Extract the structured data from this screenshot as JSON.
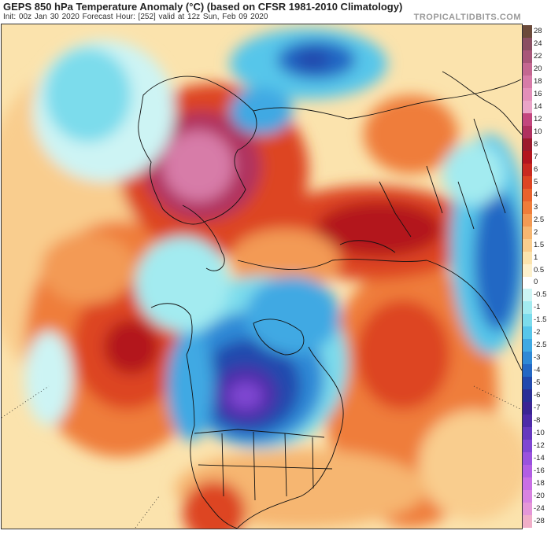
{
  "header": {
    "title": "GEPS 850 hPa Temperature Anomaly (°C) (based on CFSR 1981-2010 Climatology)",
    "subtitle": "Init: 00z Jan 30 2020   Forecast Hour: [252]   valid at 12z Sun, Feb 09 2020",
    "brand": "TROPICALTIDBITS.COM"
  },
  "colorbar": {
    "labels": [
      "28",
      "24",
      "22",
      "20",
      "18",
      "16",
      "14",
      "12",
      "10",
      "8",
      "7",
      "6",
      "5",
      "4",
      "3",
      "2.5",
      "2",
      "1.5",
      "1",
      "0.5",
      "0",
      "-0.5",
      "-1",
      "-1.5",
      "-2",
      "-2.5",
      "-3",
      "-4",
      "-5",
      "-6",
      "-7",
      "-8",
      "-10",
      "-12",
      "-14",
      "-16",
      "-18",
      "-20",
      "-24",
      "-28"
    ],
    "colors": [
      "#6b4a3a",
      "#8a4f62",
      "#a85679",
      "#c46791",
      "#d77ba8",
      "#e38fb9",
      "#eaa4c8",
      "#c3467e",
      "#b0305f",
      "#9c1a2c",
      "#b3161e",
      "#c92a1f",
      "#dd4522",
      "#e8622d",
      "#ef7d3a",
      "#f39a54",
      "#f6b671",
      "#f9cd8e",
      "#fbe3ad",
      "#fdf1cd",
      "#ffffff",
      "#cdf4f4",
      "#a3ebf0",
      "#7cdcec",
      "#57c6ea",
      "#3fa9e3",
      "#2f89d6",
      "#2468c4",
      "#2149ad",
      "#2a2f96",
      "#3b2594",
      "#4e2ba8",
      "#6638be",
      "#7f46d2",
      "#9a52dd",
      "#b25ee3",
      "#c96fe4",
      "#d883e0",
      "#e597d8",
      "#f0aec8"
    ]
  },
  "map_legend": {
    "warm_anomaly": "#e8622d",
    "cold_anomaly": "#2468c4",
    "extreme_warm": "#d77ba8",
    "extreme_cold": "#6638be",
    "coastline": "#111111"
  }
}
